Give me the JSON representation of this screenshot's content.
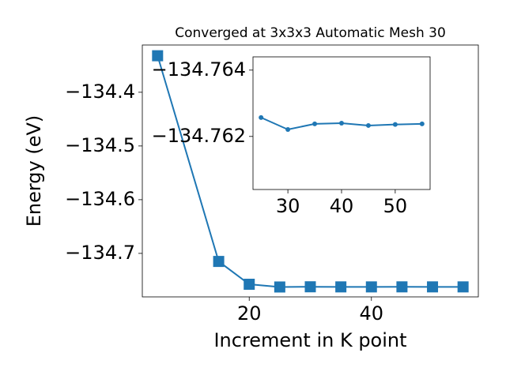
{
  "chart_data": [
    {
      "type": "line",
      "title": "Converged at 3x3x3 Automatic Mesh 30",
      "x_label": "Increment in K point",
      "y_label": "Energy (eV)",
      "x": [
        5,
        15,
        20,
        25,
        30,
        35,
        40,
        45,
        50,
        55
      ],
      "series": [
        {
          "color": "#1f77b4",
          "marker": "square",
          "values": [
            -134.332,
            -134.715,
            -134.7575,
            -134.76257,
            -134.76221,
            -134.76238,
            -134.7624,
            -134.76233,
            -134.76236,
            -134.76238
          ]
        }
      ],
      "xlim": [
        2.5,
        57.5
      ],
      "xticks": [
        20,
        40
      ],
      "ylim": [
        -134.781,
        -134.312
      ],
      "yticks": [
        {
          "value": -134.7,
          "label": "−134.7"
        },
        {
          "value": -134.6,
          "label": "−134.6"
        },
        {
          "value": -134.5,
          "label": "−134.5"
        },
        {
          "value": -134.4,
          "label": "−134.4"
        }
      ]
    },
    {
      "type": "line",
      "x": [
        25,
        30,
        35,
        40,
        45,
        50,
        55
      ],
      "series": [
        {
          "color": "#1f77b4",
          "marker": "circle",
          "values": [
            -134.76257,
            -134.76221,
            -134.76238,
            -134.7624,
            -134.76233,
            -134.76236,
            -134.76238
          ]
        }
      ],
      "xlim": [
        23.5,
        56.5
      ],
      "xticks": [
        30,
        40,
        50
      ],
      "ylim": [
        -134.7604,
        -134.7644
      ],
      "yticks": [
        {
          "value": -134.762,
          "label": "−134.762"
        },
        {
          "value": -134.764,
          "label": "−134.764"
        }
      ]
    }
  ]
}
